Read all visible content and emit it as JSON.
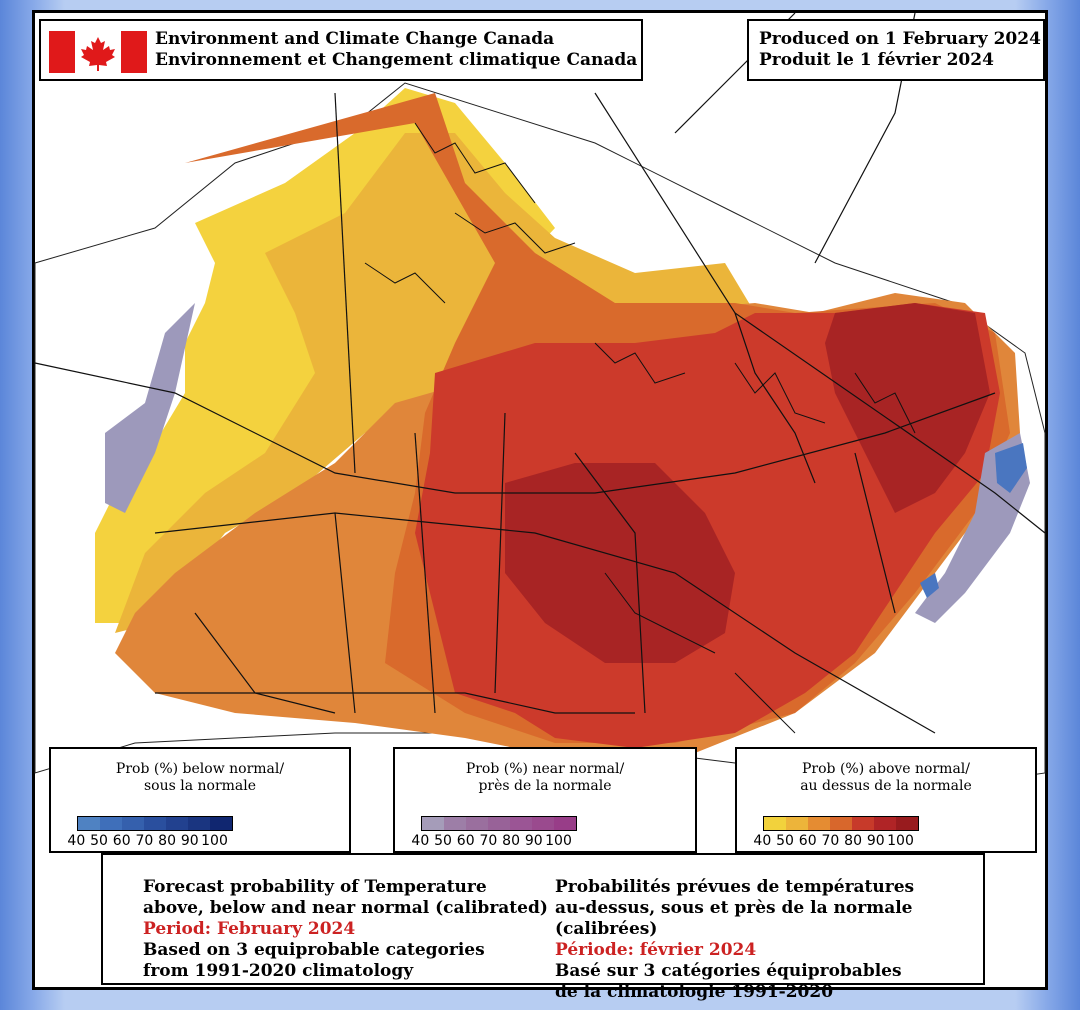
{
  "header": {
    "agency_en": "Environment and Climate Change Canada",
    "agency_fr": "Environnement et Changement climatique Canada",
    "produced_en": "Produced on 1 February 2024",
    "produced_fr": "Produit le 1 février 2024"
  },
  "legends": {
    "below": {
      "title_1": "Prob (%) below normal/",
      "title_2": "sous la normale",
      "ticks": [
        "40",
        "50",
        "60",
        "70",
        "80",
        "90",
        "100"
      ],
      "colors": [
        "#4f82c2",
        "#3f6fba",
        "#3560ad",
        "#2a4f9e",
        "#22418f",
        "#1a3580",
        "#102670"
      ]
    },
    "near": {
      "title_1": "Prob (%) near normal/",
      "title_2": "près de la normale",
      "ticks": [
        "40",
        "50",
        "60",
        "70",
        "80",
        "90",
        "100"
      ],
      "colors": [
        "#a59cb9",
        "#9d7ea7",
        "#9a6f9e",
        "#986298",
        "#9b5595",
        "#9a4a8e",
        "#983d88"
      ]
    },
    "above": {
      "title_1": "Prob (%) above normal/",
      "title_2": "au dessus de la normale",
      "ticks": [
        "40",
        "50",
        "60",
        "70",
        "80",
        "90",
        "100"
      ],
      "colors": [
        "#f2d23c",
        "#edb43a",
        "#e58c32",
        "#d8672c",
        "#c73a2a",
        "#b02426",
        "#981b1e"
      ]
    }
  },
  "info": {
    "en_1": "Forecast probability of Temperature",
    "en_2": "above, below and near normal (calibrated)",
    "en_period": "Period: February 2024",
    "en_3": "Based on 3 equiprobable categories",
    "en_4": "from 1991-2020 climatology",
    "fr_1": "Probabilités prévues de températures",
    "fr_2": "au-dessus, sous et près de la normale (calibrées)",
    "fr_period": "Période: février 2024",
    "fr_3": "Basé sur 3 catégories équiprobables",
    "fr_4": "de la climatologie 1991-2020"
  },
  "colors": {
    "yellow": "#f4d23e",
    "light_orange": "#ebb53a",
    "orange": "#e0863a",
    "dark_orange": "#d96a2c",
    "red": "#cc3a2b",
    "dark_red": "#a82424",
    "lavender": "#9d99bb",
    "blue": "#4a76c0",
    "canada_red": "#e0191a"
  }
}
